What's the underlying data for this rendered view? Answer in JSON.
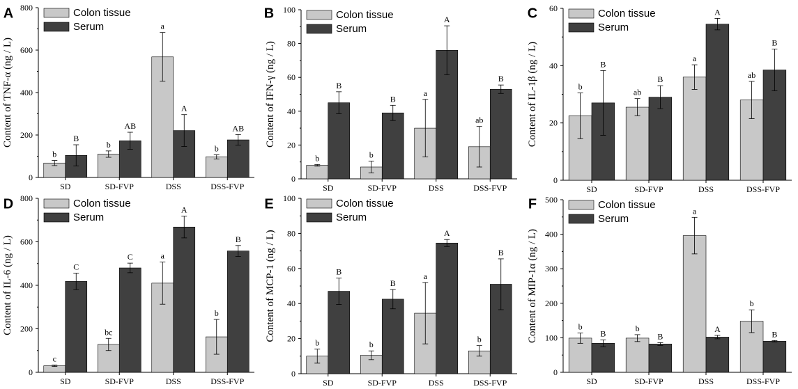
{
  "colors": {
    "colon": "#c8c8c8",
    "serum": "#404040",
    "axis": "#000000"
  },
  "chart_data": [
    {
      "type": "bar",
      "panel_label": "A",
      "ylabel": "Content of TNF-α (ng / L)",
      "categories": [
        "SD",
        "SD-FVP",
        "DSS",
        "DSS-FVP"
      ],
      "ylim": [
        0,
        800
      ],
      "yticks": [
        "0",
        "200",
        "400",
        "600",
        "800"
      ],
      "legend_position": "top-left",
      "series": [
        {
          "name": "Colon tissue",
          "values": [
            68,
            110,
            568,
            97
          ],
          "errors": [
            12,
            15,
            115,
            10
          ],
          "letters": [
            "b",
            "b",
            "a",
            "b"
          ]
        },
        {
          "name": "Serum",
          "values": [
            104,
            173,
            221,
            177
          ],
          "errors": [
            50,
            40,
            75,
            25
          ],
          "letters": [
            "B",
            "AB",
            "A",
            "AB"
          ]
        }
      ]
    },
    {
      "type": "bar",
      "panel_label": "B",
      "ylabel": "Content of IFN-γ (ng / L)",
      "categories": [
        "SD",
        "SD-FVP",
        "DSS",
        "DSS-FVP"
      ],
      "ylim": [
        0,
        100
      ],
      "yticks": [
        "0",
        "20",
        "40",
        "60",
        "80",
        "100"
      ],
      "legend_position": "top-left",
      "series": [
        {
          "name": "Colon tissue",
          "values": [
            8,
            7,
            30,
            19
          ],
          "errors": [
            0.5,
            3.5,
            17,
            12
          ],
          "letters": [
            "b",
            "b",
            "a",
            "ab"
          ]
        },
        {
          "name": "Serum",
          "values": [
            45,
            39,
            76,
            53
          ],
          "errors": [
            6.5,
            4.5,
            14.5,
            2.5
          ],
          "letters": [
            "B",
            "B",
            "A",
            "B"
          ]
        }
      ]
    },
    {
      "type": "bar",
      "panel_label": "C",
      "ylabel": "Content of IL-1β (ng / L)",
      "categories": [
        "SD",
        "SD-FVP",
        "DSS",
        "DSS-FVP"
      ],
      "ylim": [
        0,
        60
      ],
      "yticks": [
        "0",
        "20",
        "40",
        "60"
      ],
      "legend_position": "top-left",
      "series": [
        {
          "name": "Colon tissue",
          "values": [
            22.5,
            25.5,
            36,
            28
          ],
          "errors": [
            8,
            3,
            4.3,
            6.5
          ],
          "letters": [
            "b",
            "ab",
            "a",
            "ab"
          ]
        },
        {
          "name": "Serum",
          "values": [
            27,
            29,
            54.5,
            38.5
          ],
          "errors": [
            11.3,
            4,
            2,
            7.3
          ],
          "letters": [
            "B",
            "B",
            "A",
            "B"
          ]
        }
      ]
    },
    {
      "type": "bar",
      "panel_label": "D",
      "ylabel": "Content of IL-6 (ng / L)",
      "categories": [
        "SD",
        "SD-FVP",
        "DSS",
        "DSS-FVP"
      ],
      "ylim": [
        0,
        800
      ],
      "yticks": [
        "0",
        "200",
        "400",
        "600",
        "800"
      ],
      "legend_position": "top-left",
      "series": [
        {
          "name": "Colon tissue",
          "values": [
            30,
            128,
            410,
            163
          ],
          "errors": [
            3,
            28,
            97,
            80
          ],
          "letters": [
            "c",
            "bc",
            "a",
            "b"
          ]
        },
        {
          "name": "Serum",
          "values": [
            418,
            480,
            668,
            558
          ],
          "errors": [
            38,
            22,
            50,
            25
          ],
          "letters": [
            "C",
            "C",
            "A",
            "B"
          ]
        }
      ]
    },
    {
      "type": "bar",
      "panel_label": "E",
      "ylabel": "Content of MCP-1 (ng / L)",
      "categories": [
        "SD",
        "SD-FVP",
        "DSS",
        "DSS-FVP"
      ],
      "ylim": [
        0,
        100
      ],
      "yticks": [
        "0",
        "20",
        "40",
        "60",
        "80",
        "100"
      ],
      "legend_position": "top-left",
      "series": [
        {
          "name": "Colon tissue",
          "values": [
            10,
            10.5,
            34.5,
            13
          ],
          "errors": [
            4,
            2.5,
            17.5,
            3
          ],
          "letters": [
            "b",
            "b",
            "a",
            "b"
          ]
        },
        {
          "name": "Serum",
          "values": [
            47,
            42.5,
            74.5,
            51
          ],
          "errors": [
            7.5,
            5.5,
            2,
            14.5
          ],
          "letters": [
            "B",
            "B",
            "A",
            "B"
          ]
        }
      ]
    },
    {
      "type": "bar",
      "panel_label": "F",
      "ylabel": "Content of MIP-1α (ng / L)",
      "categories": [
        "SD",
        "SD-FVP",
        "DSS",
        "DSS-FVP"
      ],
      "ylim": [
        0,
        500
      ],
      "yticks": [
        "0",
        "100",
        "200",
        "300",
        "400",
        "500"
      ],
      "legend_position": "top-left",
      "series": [
        {
          "name": "Colon tissue",
          "values": [
            99,
            99,
            396,
            148
          ],
          "errors": [
            15,
            10,
            53,
            33
          ],
          "letters": [
            "b",
            "b",
            "a",
            "b"
          ]
        },
        {
          "name": "Serum",
          "values": [
            84,
            82,
            102,
            90
          ],
          "errors": [
            10,
            4,
            5,
            2
          ],
          "letters": [
            "B",
            "B",
            "A",
            "B"
          ]
        }
      ]
    }
  ]
}
